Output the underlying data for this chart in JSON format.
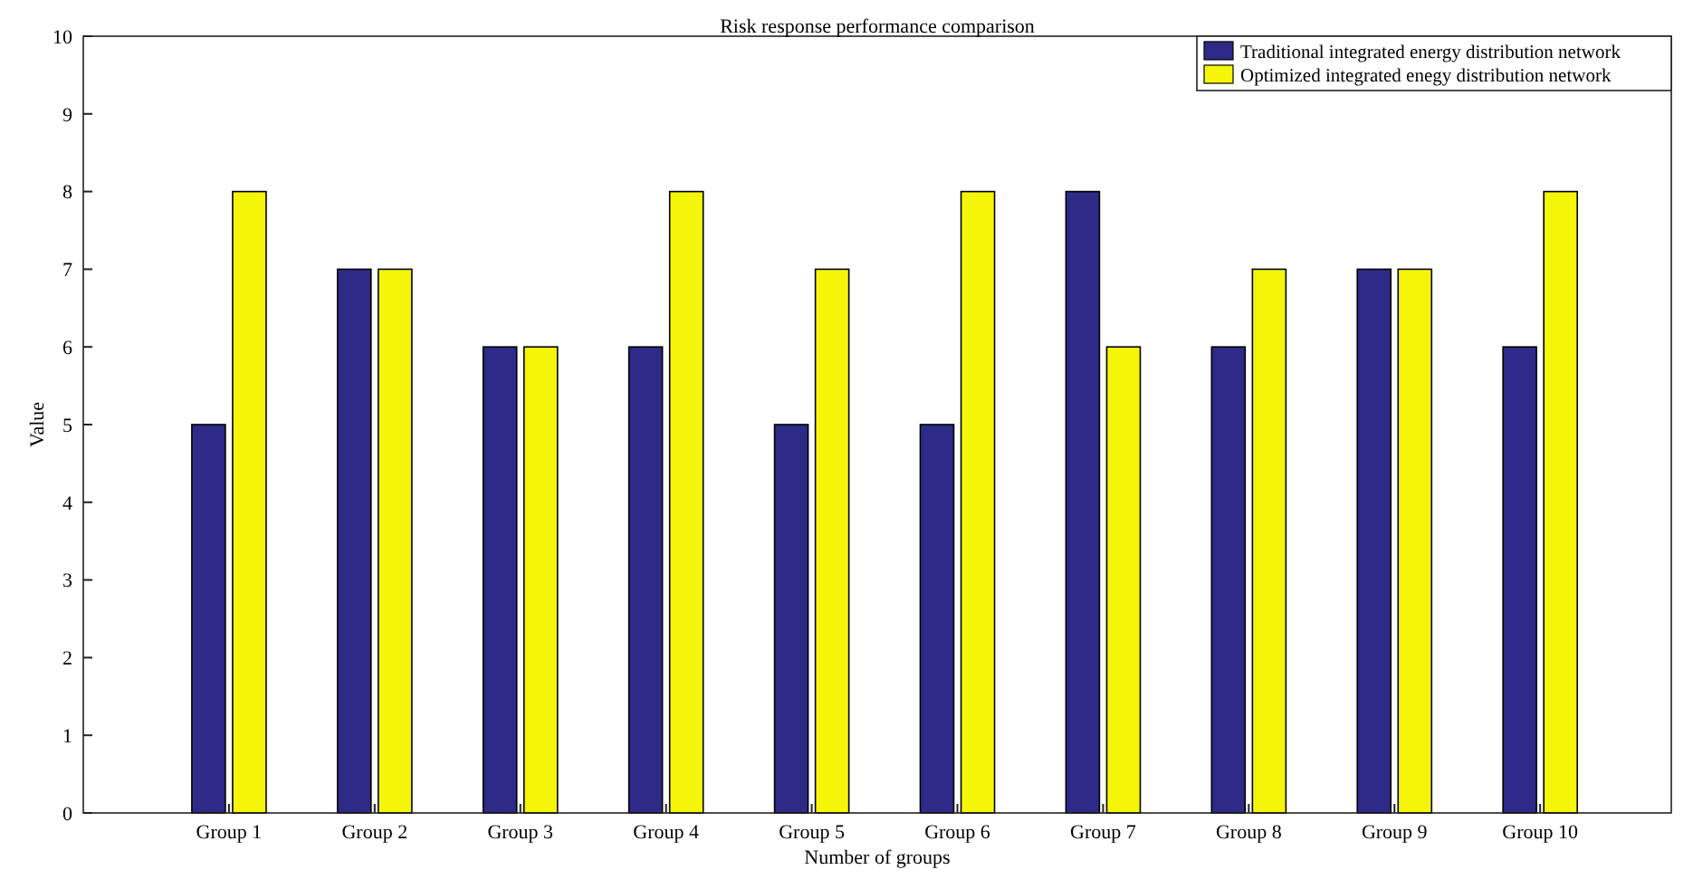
{
  "chart_data": {
    "type": "bar",
    "title": "Risk response performance comparison",
    "xlabel": "Number of groups",
    "ylabel": "Value",
    "categories": [
      "Group 1",
      "Group 2",
      "Group 3",
      "Group 4",
      "Group 5",
      "Group 6",
      "Group 7",
      "Group 8",
      "Group 9",
      "Group 10"
    ],
    "series": [
      {
        "name": "Traditional integrated energy distribution network",
        "color": "#2e2a87",
        "values": [
          5,
          7,
          6,
          6,
          5,
          5,
          8,
          6,
          7,
          6
        ]
      },
      {
        "name": "Optimized integrated enegy distribution network",
        "color": "#f5f50a",
        "values": [
          8,
          7,
          6,
          8,
          7,
          8,
          6,
          7,
          7,
          8
        ]
      }
    ],
    "ylim": [
      0,
      10
    ],
    "yticks": [
      0,
      1,
      2,
      3,
      4,
      5,
      6,
      7,
      8,
      9,
      10
    ],
    "legend": "top right",
    "grid": false
  }
}
